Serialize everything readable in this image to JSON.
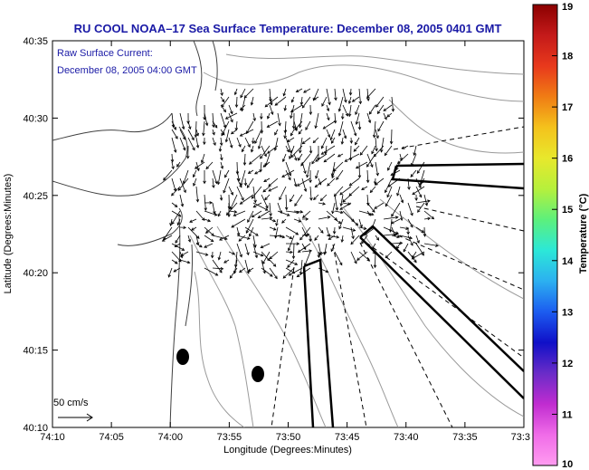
{
  "title": "RU COOL   NOAA–17  Sea Surface Temperature:  December 08, 2005 0401 GMT",
  "current_label": {
    "line1": "Raw Surface Current:",
    "line2": "December 08, 2005 04:00 GMT"
  },
  "scale_label": "50 cm/s",
  "x_axis": {
    "label": "Longitude (Degrees:Minutes)",
    "ticks": [
      "74:10",
      "74:05",
      "74:00",
      "73:55",
      "73:50",
      "73:45",
      "73:40",
      "73:35",
      "73:3"
    ]
  },
  "y_axis": {
    "label": "Latitude (Degrees:Minutes)",
    "ticks": [
      "40:35",
      "40:30",
      "40:25",
      "40:20",
      "40:15",
      "40:10"
    ]
  },
  "colorbar": {
    "label": "Temperature (°C)",
    "ticks": [
      "19",
      "18",
      "17",
      "16",
      "15",
      "14",
      "13",
      "12",
      "11",
      "10"
    ],
    "colors": [
      "#8b0000",
      "#c41a1a",
      "#e8391c",
      "#f07c14",
      "#f4c21c",
      "#e8e82c",
      "#b6f03c",
      "#5cf07c",
      "#2ce8d8",
      "#2cb0f0",
      "#1c5cf0",
      "#1010c8",
      "#6a2cc8",
      "#c02cd0",
      "#f06ce8",
      "#ff9cf0"
    ]
  },
  "icons": {
    "mooring_markers": "filled-ellipse-marker",
    "scale_arrow": "right-arrow-icon"
  }
}
